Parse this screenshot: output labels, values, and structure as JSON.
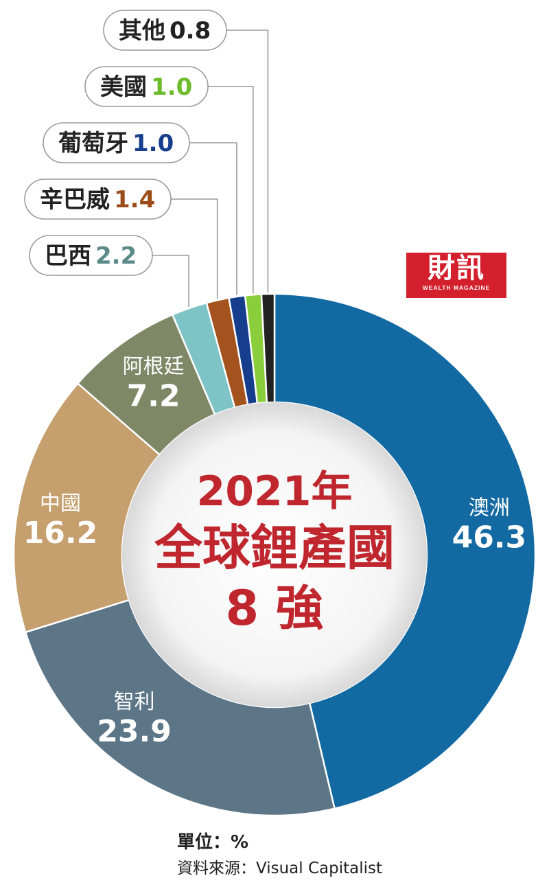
{
  "chart_data": {
    "type": "pie",
    "title": "2021年 全球鋰產國 8強",
    "title_lines": [
      "2021年",
      "全球鋰產國",
      "8 強"
    ],
    "categories": [
      "澳洲",
      "智利",
      "中國",
      "阿根廷",
      "巴西",
      "辛巴威",
      "葡萄牙",
      "美國",
      "其他"
    ],
    "values": [
      46.3,
      23.9,
      16.2,
      7.2,
      2.2,
      1.4,
      1.0,
      1.0,
      0.8
    ],
    "value_labels": [
      "46.3",
      "23.9",
      "16.2",
      "7.2",
      "2.2",
      "1.4",
      "1.0",
      "1.0",
      "0.8"
    ],
    "colors": [
      "#136aa3",
      "#5c7587",
      "#c59f6d",
      "#7e8866",
      "#7ec3c6",
      "#a4531f",
      "#173e8c",
      "#8bce3c",
      "#222222"
    ],
    "label_colors": [
      "#ffffff",
      "#ffffff",
      "#ffffff",
      "#ffffff",
      "#5c8a8a",
      "#9a4d18",
      "#173e8c",
      "#6cbb2a",
      "#222222"
    ],
    "unit": "%"
  },
  "logo": {
    "main": "財訊",
    "sub": "WEALTH MAGAZINE"
  },
  "footer": {
    "unit": "單位：%",
    "source": "資料來源：Visual Capitalist"
  }
}
